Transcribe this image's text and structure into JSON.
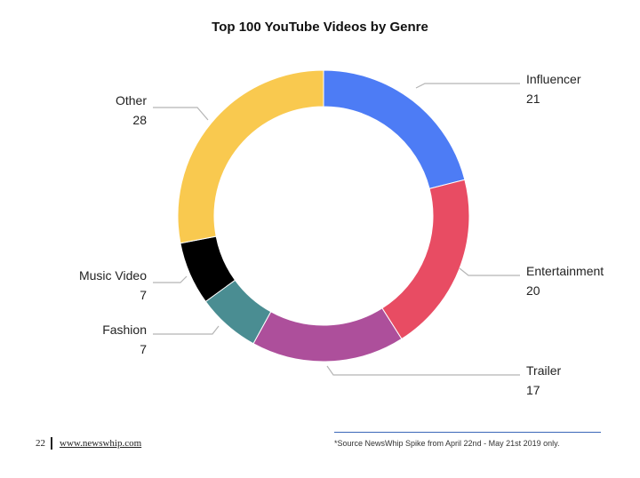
{
  "chart_data": {
    "type": "pie",
    "title": "Top 100 YouTube Videos by Genre",
    "donut": true,
    "slices": [
      {
        "label": "Influencer",
        "value": 21,
        "color": "#4d7cf5"
      },
      {
        "label": "Entertainment",
        "value": 20,
        "color": "#e84c63"
      },
      {
        "label": "Trailer",
        "value": 17,
        "color": "#ad4f9b"
      },
      {
        "label": "Fashion",
        "value": 7,
        "color": "#4a8d92"
      },
      {
        "label": "Music Video",
        "value": 7,
        "color": "#000000"
      },
      {
        "label": "Other",
        "value": 28,
        "color": "#f9c94f"
      }
    ]
  },
  "footer": {
    "page_number": "22",
    "website": "www.newswhip.com",
    "source_note": "*Source NewsWhip Spike from April 22nd - May 21st 2019 only."
  }
}
